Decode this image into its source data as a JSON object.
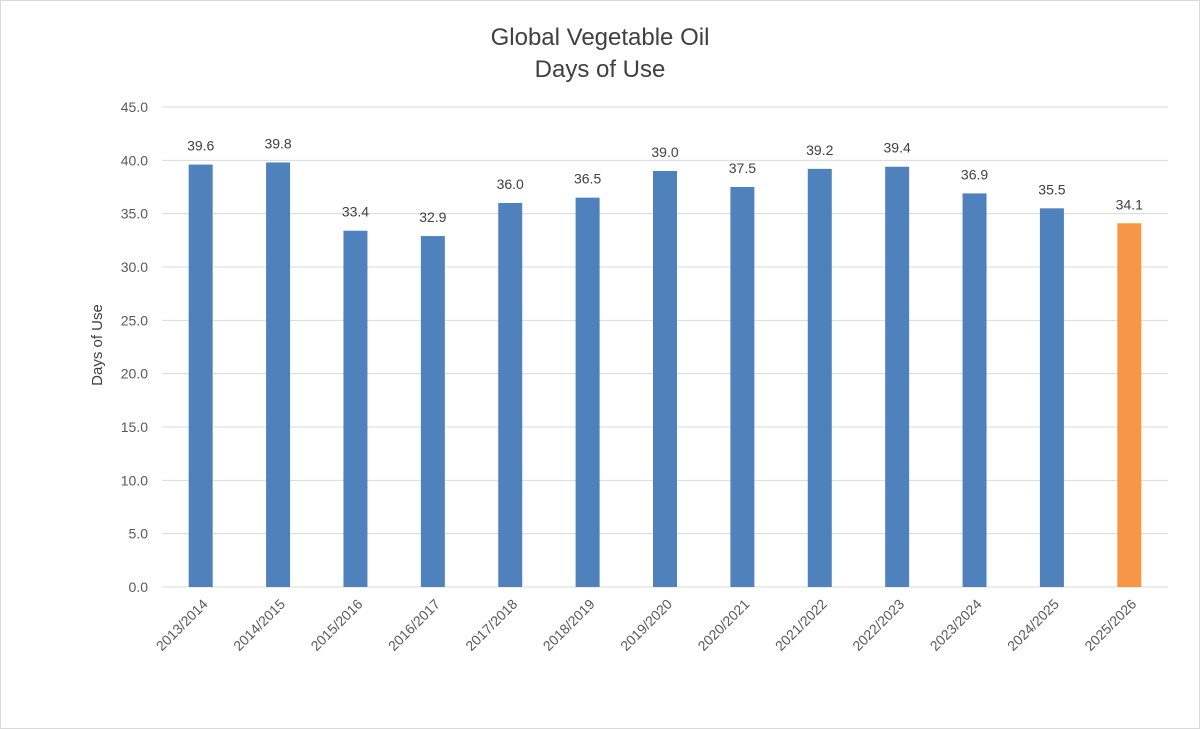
{
  "chart_data": {
    "type": "bar",
    "title": "Global Vegetable Oil",
    "subtitle": "Days of Use",
    "xlabel": "",
    "ylabel": "Days of Use",
    "ylim": [
      0,
      45
    ],
    "ytick_step": 5,
    "ytick_labels": [
      "0.0",
      "5.0",
      "10.0",
      "15.0",
      "20.0",
      "25.0",
      "30.0",
      "35.0",
      "40.0",
      "45.0"
    ],
    "grid": true,
    "legend": "none",
    "categories": [
      "2013/2014",
      "2014/2015",
      "2015/2016",
      "2016/2017",
      "2017/2018",
      "2018/2019",
      "2019/2020",
      "2020/2021",
      "2021/2022",
      "2022/2023",
      "2023/2024",
      "2024/2025",
      "2025/2026"
    ],
    "values": [
      39.6,
      39.8,
      33.4,
      32.9,
      36.0,
      36.5,
      39.0,
      37.5,
      39.2,
      39.4,
      36.9,
      35.5,
      34.1
    ],
    "data_labels": [
      "39.6",
      "39.8",
      "33.4",
      "32.9",
      "36.0",
      "36.5",
      "39.0",
      "37.5",
      "39.2",
      "39.4",
      "36.9",
      "35.5",
      "34.1"
    ],
    "colors": {
      "bar": "#4f81bd",
      "highlight": "#f79646",
      "grid": "#d9d9d9"
    },
    "highlight_index": 12
  }
}
